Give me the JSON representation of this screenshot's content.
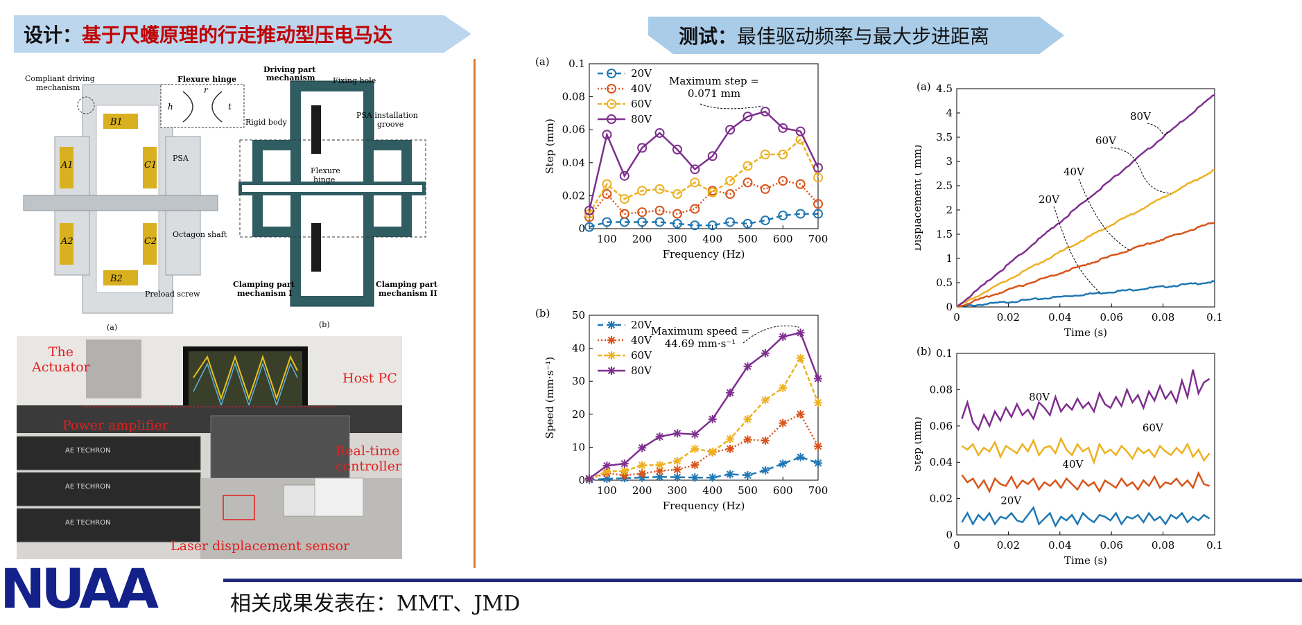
{
  "banners": {
    "left_prefix": "设计：",
    "left_red": "基于尺蠖原理的行走推动型压电马达",
    "right_prefix": "测试：",
    "right_text": "最佳驱动频率与最大步进距离"
  },
  "design_fig": {
    "compliant": "Compliant driving",
    "compliant2": "mechanism",
    "flexure_title": "Flexure hinge",
    "h": "h",
    "r": "r",
    "t": "t",
    "B1": "B1",
    "B2": "B2",
    "A1": "A1",
    "A2": "A2",
    "C1": "C1",
    "C2": "C2",
    "psa": "PSA",
    "octagon": "Octagon shaft",
    "preload": "Preload screw",
    "sub_a": "(a)",
    "driving": "Driving part",
    "driving2": "mechanism",
    "fixing": "Fixing hole",
    "rigid": "Rigid body",
    "psa_inst": "PSA installation",
    "psa_inst2": "groove",
    "flex2": "Flexure",
    "flex2b": "hinge",
    "clamp1": "Clamping part",
    "clamp1b": "mechanism I",
    "clamp2": "Clamping part",
    "clamp2b": "mechanism II",
    "sub_b": "(b)"
  },
  "photo_labels": {
    "actuator": "The",
    "actuator2": "Actuator",
    "host": "Host PC",
    "power": "Power amplifier",
    "realtime": "Real-time",
    "realtime2": "controller",
    "laser": "Laser displacement sensor",
    "brand": "AE TECHRON"
  },
  "footer": {
    "logo": "NUAA",
    "publication": "相关成果发表在：MMT、JMD"
  },
  "colors": {
    "20V": "#1f77b4",
    "40V": "#d95319",
    "60V": "#edb120",
    "80V": "#7e2f8e"
  },
  "chart_data": [
    {
      "id": "step_freq",
      "type": "line",
      "panel": "(a)",
      "xlabel": "Frequency (Hz)",
      "ylabel": "Step (mm)",
      "xlim": [
        50,
        700
      ],
      "ylim": [
        0,
        0.1
      ],
      "xticks": [
        100,
        200,
        300,
        400,
        500,
        600,
        700
      ],
      "yticks": [
        0,
        0.02,
        0.04,
        0.06,
        0.08,
        0.1
      ],
      "ytick_labels": [
        "0",
        "0.02",
        "0.04",
        "0.06",
        "0.08",
        "0.1"
      ],
      "x": [
        50,
        100,
        150,
        200,
        250,
        300,
        350,
        400,
        450,
        500,
        550,
        600,
        650,
        700
      ],
      "marker": "circle",
      "legend": "top-left",
      "annotation": [
        "Maximum step =",
        "0.071 mm"
      ],
      "series": [
        {
          "name": "20V",
          "values": [
            0.001,
            0.004,
            0.004,
            0.004,
            0.004,
            0.003,
            0.002,
            0.002,
            0.004,
            0.003,
            0.005,
            0.008,
            0.009,
            0.009
          ]
        },
        {
          "name": "40V",
          "values": [
            0.007,
            0.021,
            0.009,
            0.01,
            0.011,
            0.009,
            0.012,
            0.023,
            0.021,
            0.028,
            0.024,
            0.029,
            0.027,
            0.015
          ]
        },
        {
          "name": "60V",
          "values": [
            0.009,
            0.027,
            0.018,
            0.023,
            0.024,
            0.021,
            0.028,
            0.022,
            0.029,
            0.038,
            0.045,
            0.045,
            0.054,
            0.031
          ]
        },
        {
          "name": "80V",
          "values": [
            0.011,
            0.057,
            0.032,
            0.049,
            0.058,
            0.048,
            0.036,
            0.044,
            0.06,
            0.068,
            0.071,
            0.061,
            0.059,
            0.037
          ]
        }
      ]
    },
    {
      "id": "speed_freq",
      "type": "line",
      "panel": "(b)",
      "xlabel": "Frequency (Hz)",
      "ylabel": "Speed (mm·s⁻¹)",
      "xlim": [
        50,
        700
      ],
      "ylim": [
        0,
        50
      ],
      "xticks": [
        100,
        200,
        300,
        400,
        500,
        600,
        700
      ],
      "yticks": [
        0,
        10,
        20,
        30,
        40,
        50
      ],
      "ytick_labels": [
        "0",
        "10",
        "20",
        "30",
        "40",
        "50"
      ],
      "x": [
        50,
        100,
        150,
        200,
        250,
        300,
        350,
        400,
        450,
        500,
        550,
        600,
        650,
        700
      ],
      "marker": "asterisk",
      "legend": "top-left",
      "annotation": [
        "Maximum speed =",
        "44.69 mm·s⁻¹"
      ],
      "series": [
        {
          "name": "20V",
          "values": [
            0.1,
            0.4,
            0.6,
            0.8,
            1.0,
            0.9,
            0.8,
            0.8,
            1.8,
            1.5,
            3.0,
            5.0,
            7.0,
            5.2
          ]
        },
        {
          "name": "40V",
          "values": [
            0.3,
            2.1,
            1.5,
            2.0,
            2.8,
            3.2,
            4.6,
            8.5,
            9.5,
            12.3,
            12.0,
            17.3,
            20.0,
            10.3
          ]
        },
        {
          "name": "60V",
          "values": [
            0.4,
            2.7,
            2.8,
            4.5,
            4.6,
            5.8,
            9.5,
            8.6,
            12.5,
            18.5,
            24.3,
            28.0,
            37.0,
            23.5
          ]
        },
        {
          "name": "80V",
          "values": [
            0.5,
            4.4,
            5.0,
            9.8,
            13.2,
            14.2,
            13.9,
            18.5,
            26.5,
            34.5,
            38.5,
            43.5,
            44.69,
            30.8
          ]
        }
      ]
    },
    {
      "id": "disp_time",
      "type": "line",
      "panel": "(a)",
      "xlabel": "Time (s)",
      "ylabel": "Displacement ( mm)",
      "xlim": [
        0,
        0.1
      ],
      "ylim": [
        0,
        4.5
      ],
      "xticks": [
        0,
        0.02,
        0.04,
        0.06,
        0.08,
        0.1
      ],
      "xtick_labels": [
        "0",
        "0.02",
        "0.04",
        "0.06",
        "0.08",
        "0.1"
      ],
      "yticks": [
        0,
        0.5,
        1,
        1.5,
        2,
        2.5,
        3,
        3.5,
        4,
        4.5
      ],
      "ytick_labels": [
        "0",
        "0.5",
        "1",
        "1.5",
        "2",
        "2.5",
        "3",
        "3.5",
        "4",
        "4.5"
      ],
      "series": [
        {
          "name": "20V",
          "end_value": 0.52
        },
        {
          "name": "40V",
          "end_value": 1.75
        },
        {
          "name": "60V",
          "end_value": 2.82
        },
        {
          "name": "80V",
          "end_value": 4.38
        }
      ]
    },
    {
      "id": "step_time",
      "type": "line",
      "panel": "(b)",
      "xlabel": "Time (s)",
      "ylabel": "Step (mm)",
      "xlim": [
        0,
        0.1
      ],
      "ylim": [
        0,
        0.1
      ],
      "xticks": [
        0,
        0.02,
        0.04,
        0.06,
        0.08,
        0.1
      ],
      "xtick_labels": [
        "0",
        "0.02",
        "0.04",
        "0.06",
        "0.08",
        "0.1"
      ],
      "yticks": [
        0,
        0.02,
        0.04,
        0.06,
        0.08,
        0.1
      ],
      "ytick_labels": [
        "0",
        "0.02",
        "0.04",
        "0.06",
        "0.08",
        "0.1"
      ],
      "series": [
        {
          "name": "20V",
          "values": [
            0.007,
            0.012,
            0.006,
            0.011,
            0.008,
            0.012,
            0.006,
            0.01,
            0.009,
            0.012,
            0.008,
            0.007,
            0.011,
            0.015,
            0.006,
            0.009,
            0.012,
            0.005,
            0.01,
            0.008,
            0.011,
            0.006,
            0.012,
            0.009,
            0.007,
            0.011,
            0.01,
            0.008,
            0.012,
            0.006,
            0.01,
            0.009,
            0.011,
            0.007,
            0.012,
            0.008,
            0.01,
            0.006,
            0.011,
            0.009,
            0.012,
            0.007,
            0.01,
            0.008,
            0.011,
            0.009
          ]
        },
        {
          "name": "40V",
          "values": [
            0.033,
            0.029,
            0.031,
            0.026,
            0.03,
            0.024,
            0.031,
            0.028,
            0.027,
            0.032,
            0.026,
            0.03,
            0.028,
            0.031,
            0.025,
            0.029,
            0.027,
            0.03,
            0.026,
            0.031,
            0.028,
            0.025,
            0.03,
            0.027,
            0.029,
            0.024,
            0.03,
            0.028,
            0.026,
            0.031,
            0.027,
            0.029,
            0.025,
            0.03,
            0.027,
            0.032,
            0.026,
            0.029,
            0.028,
            0.031,
            0.027,
            0.03,
            0.026,
            0.034,
            0.028,
            0.027
          ]
        },
        {
          "name": "60V",
          "values": [
            0.049,
            0.047,
            0.05,
            0.044,
            0.048,
            0.046,
            0.051,
            0.043,
            0.049,
            0.047,
            0.045,
            0.05,
            0.046,
            0.052,
            0.044,
            0.048,
            0.049,
            0.045,
            0.053,
            0.047,
            0.044,
            0.05,
            0.046,
            0.048,
            0.04,
            0.05,
            0.045,
            0.047,
            0.044,
            0.049,
            0.046,
            0.042,
            0.048,
            0.045,
            0.047,
            0.043,
            0.049,
            0.046,
            0.044,
            0.048,
            0.045,
            0.05,
            0.043,
            0.047,
            0.041,
            0.045
          ]
        },
        {
          "name": "80V",
          "values": [
            0.064,
            0.073,
            0.062,
            0.058,
            0.066,
            0.06,
            0.068,
            0.063,
            0.07,
            0.065,
            0.072,
            0.066,
            0.069,
            0.064,
            0.073,
            0.07,
            0.066,
            0.076,
            0.068,
            0.072,
            0.069,
            0.075,
            0.07,
            0.073,
            0.068,
            0.078,
            0.072,
            0.07,
            0.076,
            0.071,
            0.08,
            0.073,
            0.077,
            0.07,
            0.079,
            0.074,
            0.082,
            0.075,
            0.079,
            0.073,
            0.085,
            0.076,
            0.091,
            0.078,
            0.084,
            0.086
          ]
        }
      ]
    }
  ],
  "right_labels": {
    "a": [
      "20V",
      "40V",
      "60V",
      "80V"
    ],
    "b": [
      "20V",
      "40V",
      "60V",
      "80V"
    ]
  }
}
